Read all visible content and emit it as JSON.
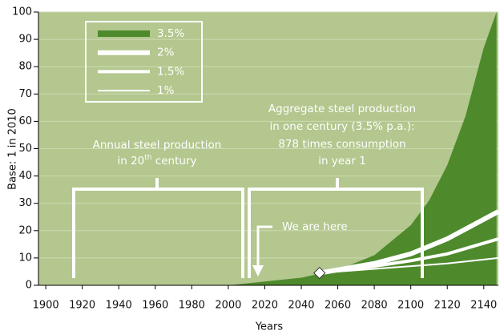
{
  "chart_data": {
    "type": "area_line",
    "x_label": "Years",
    "y_label": "Base: 1 in 2010",
    "xlim": [
      1896,
      2148
    ],
    "ylim": [
      0,
      100
    ],
    "xticks": [
      1900,
      1920,
      1940,
      1960,
      1980,
      2000,
      2020,
      2040,
      2060,
      2080,
      2100,
      2120,
      2140
    ],
    "yticks": [
      0,
      10,
      20,
      30,
      40,
      50,
      60,
      70,
      80,
      90,
      100
    ],
    "series": [
      {
        "name": "3.5%",
        "color": "#4e8a2c",
        "kind": "area",
        "x": [
          2000,
          2020,
          2040,
          2060,
          2080,
          2100,
          2110,
          2120,
          2130,
          2140,
          2147
        ],
        "values": [
          0,
          1.4,
          2.8,
          5.6,
          11,
          22,
          31,
          44,
          62,
          87,
          100
        ]
      },
      {
        "name": "2%",
        "color": "#ffffff",
        "kind": "line",
        "width": 6,
        "x": [
          2050,
          2080,
          2100,
          2120,
          2148
        ],
        "values": [
          4.5,
          8,
          11.5,
          17,
          27
        ]
      },
      {
        "name": "1.5%",
        "color": "#ffffff",
        "kind": "line",
        "width": 4,
        "x": [
          2050,
          2080,
          2100,
          2120,
          2148
        ],
        "values": [
          4.5,
          7,
          9,
          11.5,
          17
        ]
      },
      {
        "name": "1%",
        "color": "#ffffff",
        "kind": "line",
        "width": 2,
        "x": [
          2050,
          2080,
          2100,
          2120,
          2148
        ],
        "values": [
          4.5,
          6,
          7,
          8,
          10
        ]
      }
    ],
    "marker": {
      "x": 2050,
      "y": 4.5
    },
    "annotations": {
      "left": {
        "line1": "Annual steel production",
        "pre": "in 20",
        "sup": "th",
        "post": " century"
      },
      "right": [
        "Aggregate steel production",
        "in one century (3.5% p.a.):",
        "878 times consumption",
        "in year 1"
      ],
      "here": "We are here"
    },
    "plot_color": "#b3c78e"
  }
}
